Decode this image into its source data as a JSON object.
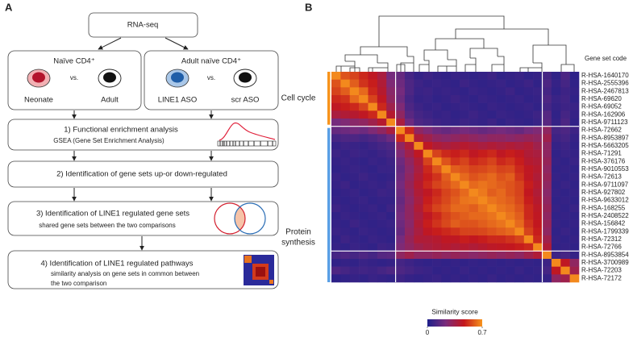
{
  "diagram": {
    "panel_label": "A",
    "source": "RNA-seq",
    "comparisons": [
      {
        "title": "Naïve CD4⁺",
        "left": "Neonate",
        "vs": "vs.",
        "right": "Adult"
      },
      {
        "title": "Adult naïve CD4⁺",
        "left": "LINE1 ASO",
        "vs": "vs.",
        "right": "scr ASO"
      }
    ],
    "steps": [
      {
        "title": "1) Functional enrichment analysis",
        "lines": [
          "GSEA (Gene Set Enrichment Analysis)"
        ]
      },
      {
        "title": "2) Identification of gene sets up-or down-regulated"
      },
      {
        "title": "3) Identification of LINE1 regulated gene sets",
        "lines": [
          "shared gene sets between the two comparisons"
        ]
      },
      {
        "title": "4) Identification of LINE1 regulated pathways",
        "lines": [
          "similarity analysis on gene sets in common between",
          "the two comparison"
        ]
      }
    ]
  },
  "chart_data": {
    "type": "heatmap",
    "panel_label": "B",
    "row_header": "Gene set code",
    "rows": [
      "R-HSA-1640170",
      "R-HSA-2555396",
      "R-HSA-2467813",
      "R-HSA-69620",
      "R-HSA-69052",
      "R-HSA-162906",
      "R-HSA-9711123",
      "R-HSA-72662",
      "R-HSA-8953897",
      "R-HSA-5663205",
      "R-HSA-71291",
      "R-HSA-376176",
      "R-HSA-9010553",
      "R-HSA-72613",
      "R-HSA-9711097",
      "R-HSA-927802",
      "R-HSA-9633012",
      "R-HSA-168255",
      "R-HSA-2408522",
      "R-HSA-156842",
      "R-HSA-1799339",
      "R-HSA-72312",
      "R-HSA-72766",
      "R-HSA-8953854",
      "R-HSA-3700989",
      "R-HSA-72203",
      "R-HSA-72172"
    ],
    "groups": [
      {
        "lines": [
          "Cell cycle"
        ],
        "color": "#f7941d"
      },
      {
        "lines": [
          "Protein",
          "synthesis"
        ],
        "color": "#5aa0e6"
      }
    ],
    "colormap": [
      "#1d1f8a",
      "#7a2c7c",
      "#c4161c",
      "#f7941d"
    ],
    "colorbar": {
      "title": "Similarity score",
      "lim": [
        0,
        0.7
      ],
      "ticks": [
        0,
        0.7
      ]
    },
    "values": [
      [
        0.68,
        0.58,
        0.55,
        0.5,
        0.45,
        0.38,
        0.22,
        0.18,
        0.1,
        0.06,
        0.08,
        0.06,
        0.05,
        0.07,
        0.06,
        0.05,
        0.06,
        0.08,
        0.05,
        0.06,
        0.07,
        0.05,
        0.06,
        0.1,
        0.05,
        0.12,
        0.04
      ],
      [
        0.58,
        0.68,
        0.6,
        0.52,
        0.48,
        0.4,
        0.25,
        0.2,
        0.12,
        0.08,
        0.06,
        0.07,
        0.06,
        0.05,
        0.08,
        0.06,
        0.05,
        0.06,
        0.07,
        0.05,
        0.06,
        0.08,
        0.05,
        0.12,
        0.06,
        0.1,
        0.05
      ],
      [
        0.55,
        0.6,
        0.68,
        0.62,
        0.5,
        0.42,
        0.28,
        0.22,
        0.12,
        0.07,
        0.08,
        0.06,
        0.07,
        0.06,
        0.05,
        0.07,
        0.06,
        0.05,
        0.06,
        0.08,
        0.05,
        0.06,
        0.07,
        0.1,
        0.05,
        0.08,
        0.06
      ],
      [
        0.5,
        0.52,
        0.62,
        0.68,
        0.55,
        0.45,
        0.3,
        0.2,
        0.1,
        0.06,
        0.07,
        0.05,
        0.06,
        0.08,
        0.06,
        0.05,
        0.07,
        0.06,
        0.05,
        0.06,
        0.07,
        0.05,
        0.06,
        0.12,
        0.07,
        0.09,
        0.05
      ],
      [
        0.45,
        0.48,
        0.5,
        0.55,
        0.68,
        0.5,
        0.35,
        0.25,
        0.12,
        0.08,
        0.06,
        0.07,
        0.05,
        0.06,
        0.07,
        0.06,
        0.05,
        0.07,
        0.06,
        0.05,
        0.06,
        0.07,
        0.05,
        0.1,
        0.06,
        0.08,
        0.07
      ],
      [
        0.38,
        0.4,
        0.42,
        0.45,
        0.5,
        0.68,
        0.42,
        0.3,
        0.15,
        0.1,
        0.08,
        0.06,
        0.07,
        0.05,
        0.06,
        0.08,
        0.06,
        0.05,
        0.07,
        0.06,
        0.05,
        0.06,
        0.08,
        0.14,
        0.05,
        0.1,
        0.06
      ],
      [
        0.22,
        0.25,
        0.28,
        0.3,
        0.35,
        0.42,
        0.68,
        0.38,
        0.2,
        0.12,
        0.1,
        0.08,
        0.07,
        0.06,
        0.08,
        0.07,
        0.06,
        0.08,
        0.05,
        0.07,
        0.06,
        0.05,
        0.07,
        0.15,
        0.06,
        0.12,
        0.05
      ],
      [
        0.18,
        0.2,
        0.22,
        0.2,
        0.25,
        0.3,
        0.38,
        0.68,
        0.5,
        0.3,
        0.25,
        0.2,
        0.18,
        0.2,
        0.22,
        0.2,
        0.18,
        0.2,
        0.22,
        0.2,
        0.18,
        0.22,
        0.25,
        0.3,
        0.1,
        0.12,
        0.08
      ],
      [
        0.1,
        0.12,
        0.12,
        0.1,
        0.12,
        0.15,
        0.2,
        0.5,
        0.68,
        0.4,
        0.35,
        0.3,
        0.28,
        0.3,
        0.32,
        0.3,
        0.28,
        0.3,
        0.3,
        0.28,
        0.3,
        0.32,
        0.3,
        0.35,
        0.08,
        0.1,
        0.06
      ],
      [
        0.06,
        0.08,
        0.07,
        0.06,
        0.08,
        0.1,
        0.12,
        0.3,
        0.4,
        0.68,
        0.45,
        0.4,
        0.38,
        0.4,
        0.42,
        0.4,
        0.38,
        0.4,
        0.38,
        0.4,
        0.38,
        0.4,
        0.35,
        0.3,
        0.06,
        0.08,
        0.05
      ],
      [
        0.08,
        0.06,
        0.08,
        0.07,
        0.06,
        0.08,
        0.1,
        0.25,
        0.35,
        0.45,
        0.68,
        0.55,
        0.5,
        0.48,
        0.5,
        0.45,
        0.48,
        0.5,
        0.45,
        0.48,
        0.45,
        0.4,
        0.38,
        0.3,
        0.05,
        0.07,
        0.06
      ],
      [
        0.06,
        0.07,
        0.06,
        0.05,
        0.07,
        0.06,
        0.08,
        0.2,
        0.3,
        0.4,
        0.55,
        0.68,
        0.58,
        0.52,
        0.55,
        0.5,
        0.52,
        0.55,
        0.5,
        0.52,
        0.48,
        0.42,
        0.4,
        0.32,
        0.06,
        0.05,
        0.07
      ],
      [
        0.05,
        0.06,
        0.07,
        0.06,
        0.05,
        0.07,
        0.07,
        0.18,
        0.28,
        0.38,
        0.5,
        0.58,
        0.68,
        0.6,
        0.58,
        0.55,
        0.56,
        0.58,
        0.55,
        0.56,
        0.5,
        0.45,
        0.42,
        0.3,
        0.05,
        0.06,
        0.05
      ],
      [
        0.07,
        0.05,
        0.06,
        0.08,
        0.06,
        0.05,
        0.06,
        0.2,
        0.3,
        0.4,
        0.48,
        0.52,
        0.6,
        0.68,
        0.62,
        0.58,
        0.6,
        0.62,
        0.58,
        0.6,
        0.52,
        0.45,
        0.4,
        0.32,
        0.06,
        0.05,
        0.06
      ],
      [
        0.06,
        0.08,
        0.05,
        0.06,
        0.07,
        0.06,
        0.08,
        0.22,
        0.32,
        0.42,
        0.5,
        0.55,
        0.58,
        0.62,
        0.68,
        0.62,
        0.64,
        0.62,
        0.6,
        0.58,
        0.55,
        0.48,
        0.42,
        0.3,
        0.05,
        0.07,
        0.05
      ],
      [
        0.05,
        0.06,
        0.07,
        0.05,
        0.06,
        0.08,
        0.07,
        0.2,
        0.3,
        0.4,
        0.45,
        0.5,
        0.55,
        0.58,
        0.62,
        0.68,
        0.65,
        0.6,
        0.62,
        0.58,
        0.55,
        0.46,
        0.4,
        0.28,
        0.06,
        0.05,
        0.06
      ],
      [
        0.06,
        0.05,
        0.06,
        0.07,
        0.05,
        0.06,
        0.06,
        0.18,
        0.28,
        0.38,
        0.48,
        0.52,
        0.56,
        0.6,
        0.64,
        0.65,
        0.68,
        0.64,
        0.62,
        0.6,
        0.56,
        0.48,
        0.42,
        0.3,
        0.05,
        0.06,
        0.05
      ],
      [
        0.08,
        0.06,
        0.05,
        0.06,
        0.07,
        0.05,
        0.08,
        0.2,
        0.3,
        0.4,
        0.5,
        0.55,
        0.58,
        0.62,
        0.62,
        0.6,
        0.64,
        0.68,
        0.64,
        0.62,
        0.58,
        0.5,
        0.44,
        0.32,
        0.06,
        0.05,
        0.07
      ],
      [
        0.05,
        0.07,
        0.06,
        0.05,
        0.06,
        0.07,
        0.05,
        0.22,
        0.3,
        0.38,
        0.45,
        0.5,
        0.55,
        0.58,
        0.6,
        0.62,
        0.62,
        0.64,
        0.68,
        0.64,
        0.6,
        0.5,
        0.45,
        0.3,
        0.05,
        0.06,
        0.05
      ],
      [
        0.06,
        0.05,
        0.08,
        0.06,
        0.05,
        0.06,
        0.07,
        0.2,
        0.28,
        0.4,
        0.48,
        0.52,
        0.56,
        0.6,
        0.58,
        0.58,
        0.6,
        0.62,
        0.64,
        0.68,
        0.62,
        0.52,
        0.46,
        0.32,
        0.06,
        0.05,
        0.06
      ],
      [
        0.07,
        0.06,
        0.05,
        0.07,
        0.06,
        0.05,
        0.06,
        0.18,
        0.3,
        0.38,
        0.45,
        0.48,
        0.5,
        0.52,
        0.55,
        0.55,
        0.56,
        0.58,
        0.6,
        0.62,
        0.68,
        0.55,
        0.48,
        0.3,
        0.05,
        0.07,
        0.05
      ],
      [
        0.05,
        0.08,
        0.06,
        0.05,
        0.07,
        0.06,
        0.05,
        0.22,
        0.32,
        0.4,
        0.4,
        0.42,
        0.45,
        0.45,
        0.48,
        0.46,
        0.48,
        0.5,
        0.5,
        0.52,
        0.55,
        0.68,
        0.5,
        0.35,
        0.06,
        0.05,
        0.06
      ],
      [
        0.06,
        0.05,
        0.07,
        0.06,
        0.05,
        0.08,
        0.07,
        0.25,
        0.3,
        0.35,
        0.38,
        0.4,
        0.42,
        0.4,
        0.42,
        0.4,
        0.42,
        0.44,
        0.45,
        0.46,
        0.48,
        0.5,
        0.68,
        0.4,
        0.05,
        0.06,
        0.05
      ],
      [
        0.1,
        0.12,
        0.1,
        0.12,
        0.1,
        0.14,
        0.15,
        0.3,
        0.35,
        0.3,
        0.3,
        0.32,
        0.3,
        0.32,
        0.3,
        0.28,
        0.3,
        0.32,
        0.3,
        0.32,
        0.3,
        0.35,
        0.4,
        0.68,
        0.08,
        0.1,
        0.06
      ],
      [
        0.05,
        0.06,
        0.05,
        0.07,
        0.06,
        0.05,
        0.06,
        0.1,
        0.08,
        0.06,
        0.05,
        0.06,
        0.05,
        0.06,
        0.05,
        0.06,
        0.05,
        0.06,
        0.05,
        0.06,
        0.05,
        0.06,
        0.05,
        0.08,
        0.68,
        0.45,
        0.3
      ],
      [
        0.12,
        0.1,
        0.08,
        0.09,
        0.08,
        0.1,
        0.12,
        0.12,
        0.1,
        0.08,
        0.07,
        0.05,
        0.06,
        0.05,
        0.07,
        0.05,
        0.06,
        0.05,
        0.06,
        0.05,
        0.07,
        0.05,
        0.06,
        0.1,
        0.45,
        0.68,
        0.35
      ],
      [
        0.04,
        0.05,
        0.06,
        0.05,
        0.07,
        0.06,
        0.05,
        0.08,
        0.06,
        0.05,
        0.06,
        0.07,
        0.05,
        0.06,
        0.05,
        0.06,
        0.05,
        0.07,
        0.05,
        0.06,
        0.05,
        0.06,
        0.05,
        0.06,
        0.3,
        0.35,
        0.68
      ]
    ]
  }
}
